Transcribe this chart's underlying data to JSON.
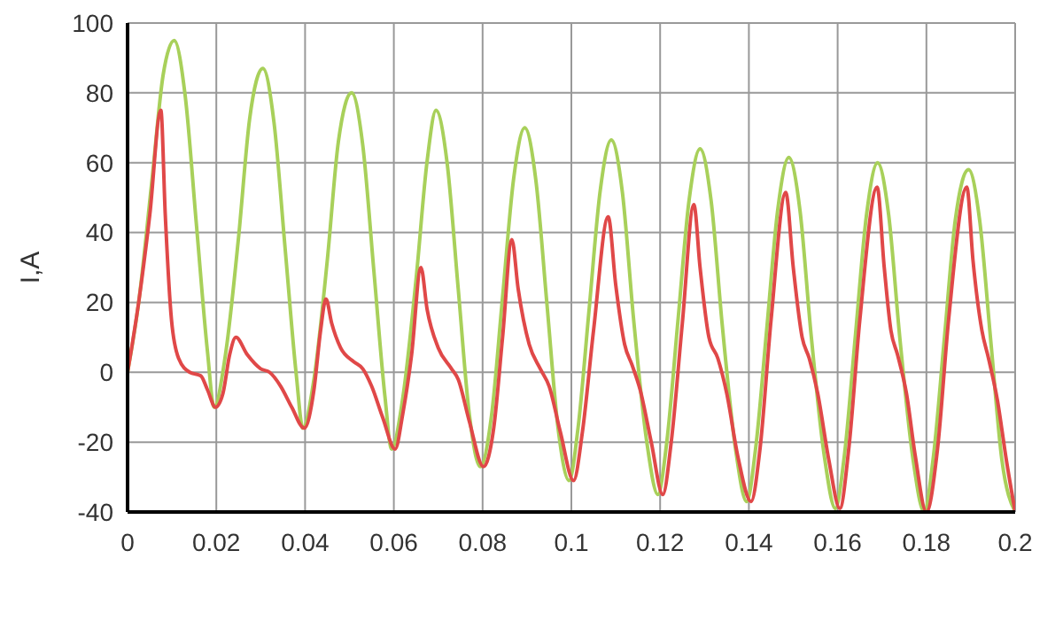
{
  "chart_data": {
    "type": "line",
    "ylabel": "I,A",
    "xlim": [
      0,
      0.2
    ],
    "ylim": [
      -40,
      100
    ],
    "xticks": [
      0,
      0.02,
      0.04,
      0.06,
      0.08,
      0.1,
      0.12,
      0.14,
      0.16,
      0.18,
      0.2
    ],
    "yticks": [
      -40,
      -20,
      0,
      20,
      40,
      60,
      80,
      100
    ],
    "grid": true,
    "marker": "none",
    "line_style": "solid",
    "series": [
      {
        "color": "#a8d05a",
        "x": [
          0,
          0.0025,
          0.0055,
          0.008,
          0.0105,
          0.013,
          0.0155,
          0.018,
          0.0195,
          0.022,
          0.025,
          0.0275,
          0.0305,
          0.033,
          0.0355,
          0.038,
          0.0395,
          0.042,
          0.045,
          0.0475,
          0.0505,
          0.053,
          0.0555,
          0.058,
          0.0595,
          0.062,
          0.065,
          0.0675,
          0.0695,
          0.072,
          0.0745,
          0.077,
          0.0795,
          0.082,
          0.0845,
          0.087,
          0.0895,
          0.092,
          0.0945,
          0.097,
          0.0995,
          0.1015,
          0.104,
          0.1065,
          0.109,
          0.1115,
          0.114,
          0.117,
          0.1195,
          0.1215,
          0.124,
          0.1265,
          0.129,
          0.1315,
          0.134,
          0.137,
          0.1395,
          0.1415,
          0.144,
          0.1465,
          0.149,
          0.1515,
          0.154,
          0.157,
          0.1595,
          0.1615,
          0.164,
          0.1665,
          0.169,
          0.1715,
          0.174,
          0.177,
          0.1795,
          0.1815,
          0.184,
          0.1865,
          0.1895,
          0.192,
          0.1945,
          0.197,
          0.2
        ],
        "values": [
          0,
          20,
          55,
          85,
          95,
          79,
          42.5,
          6,
          -10,
          4.5,
          38.5,
          72.5,
          87,
          71.5,
          35.5,
          -0.5,
          -16,
          -2,
          32,
          66,
          80,
          65,
          29,
          -7,
          -22,
          -7.5,
          26.5,
          60.5,
          75,
          60,
          24,
          -12,
          -27,
          -12.5,
          21.5,
          55.5,
          70,
          55,
          19.5,
          -16,
          -31,
          -16,
          18,
          52,
          66.5,
          51.5,
          15.5,
          -20,
          -35,
          -20,
          14.5,
          49,
          64,
          49,
          13.5,
          -22,
          -37,
          -22,
          12,
          46.5,
          61.5,
          46.5,
          11,
          -24,
          -39,
          -24,
          10.5,
          45,
          60,
          45,
          10,
          -25,
          -40,
          -25,
          9,
          43.5,
          58,
          43.5,
          9,
          -25,
          -40
        ]
      },
      {
        "color": "#e04848",
        "x": [
          0,
          0.0025,
          0.005,
          0.0075,
          0.0085,
          0.0099,
          0.0115,
          0.014,
          0.0165,
          0.018,
          0.0198,
          0.0215,
          0.023,
          0.0244,
          0.027,
          0.03,
          0.032,
          0.0345,
          0.037,
          0.0398,
          0.042,
          0.0435,
          0.0447,
          0.046,
          0.048,
          0.051,
          0.053,
          0.055,
          0.0575,
          0.0603,
          0.062,
          0.064,
          0.0661,
          0.0675,
          0.07,
          0.073,
          0.0745,
          0.077,
          0.0802,
          0.0825,
          0.0845,
          0.0866,
          0.088,
          0.0905,
          0.093,
          0.095,
          0.0975,
          0.1005,
          0.1025,
          0.105,
          0.1083,
          0.11,
          0.112,
          0.1137,
          0.1155,
          0.118,
          0.1206,
          0.1225,
          0.125,
          0.1276,
          0.129,
          0.131,
          0.133,
          0.135,
          0.1375,
          0.1405,
          0.1425,
          0.145,
          0.1483,
          0.15,
          0.152,
          0.1536,
          0.1555,
          0.158,
          0.1605,
          0.1625,
          0.165,
          0.1689,
          0.1705,
          0.172,
          0.1735,
          0.1755,
          0.1775,
          0.18,
          0.1825,
          0.185,
          0.1891,
          0.1905,
          0.1925,
          0.194,
          0.196,
          0.198,
          0.2
        ],
        "values": [
          0,
          20,
          45,
          75,
          45,
          15,
          4,
          0,
          -1,
          -5,
          -10,
          -6,
          5,
          10,
          5,
          1,
          0,
          -4,
          -10,
          -16,
          -5,
          12,
          21,
          14,
          7,
          3,
          1,
          -4,
          -13,
          -22,
          -12,
          5,
          30,
          18,
          7,
          1,
          -2,
          -14,
          -27,
          -16,
          10,
          38,
          24,
          8,
          1,
          -4,
          -17,
          -31,
          -17,
          12,
          44.5,
          25,
          8,
          2,
          -5,
          -20,
          -35,
          -20,
          14,
          48,
          30,
          10,
          4,
          -6,
          -24,
          -37,
          -22,
          15,
          51.5,
          30,
          10,
          4,
          -6,
          -25,
          -39,
          -22,
          15,
          53,
          30,
          12,
          5,
          -6,
          -24,
          -40,
          -22,
          15,
          53,
          32,
          12,
          4,
          -8,
          -25,
          -40
        ]
      }
    ]
  }
}
